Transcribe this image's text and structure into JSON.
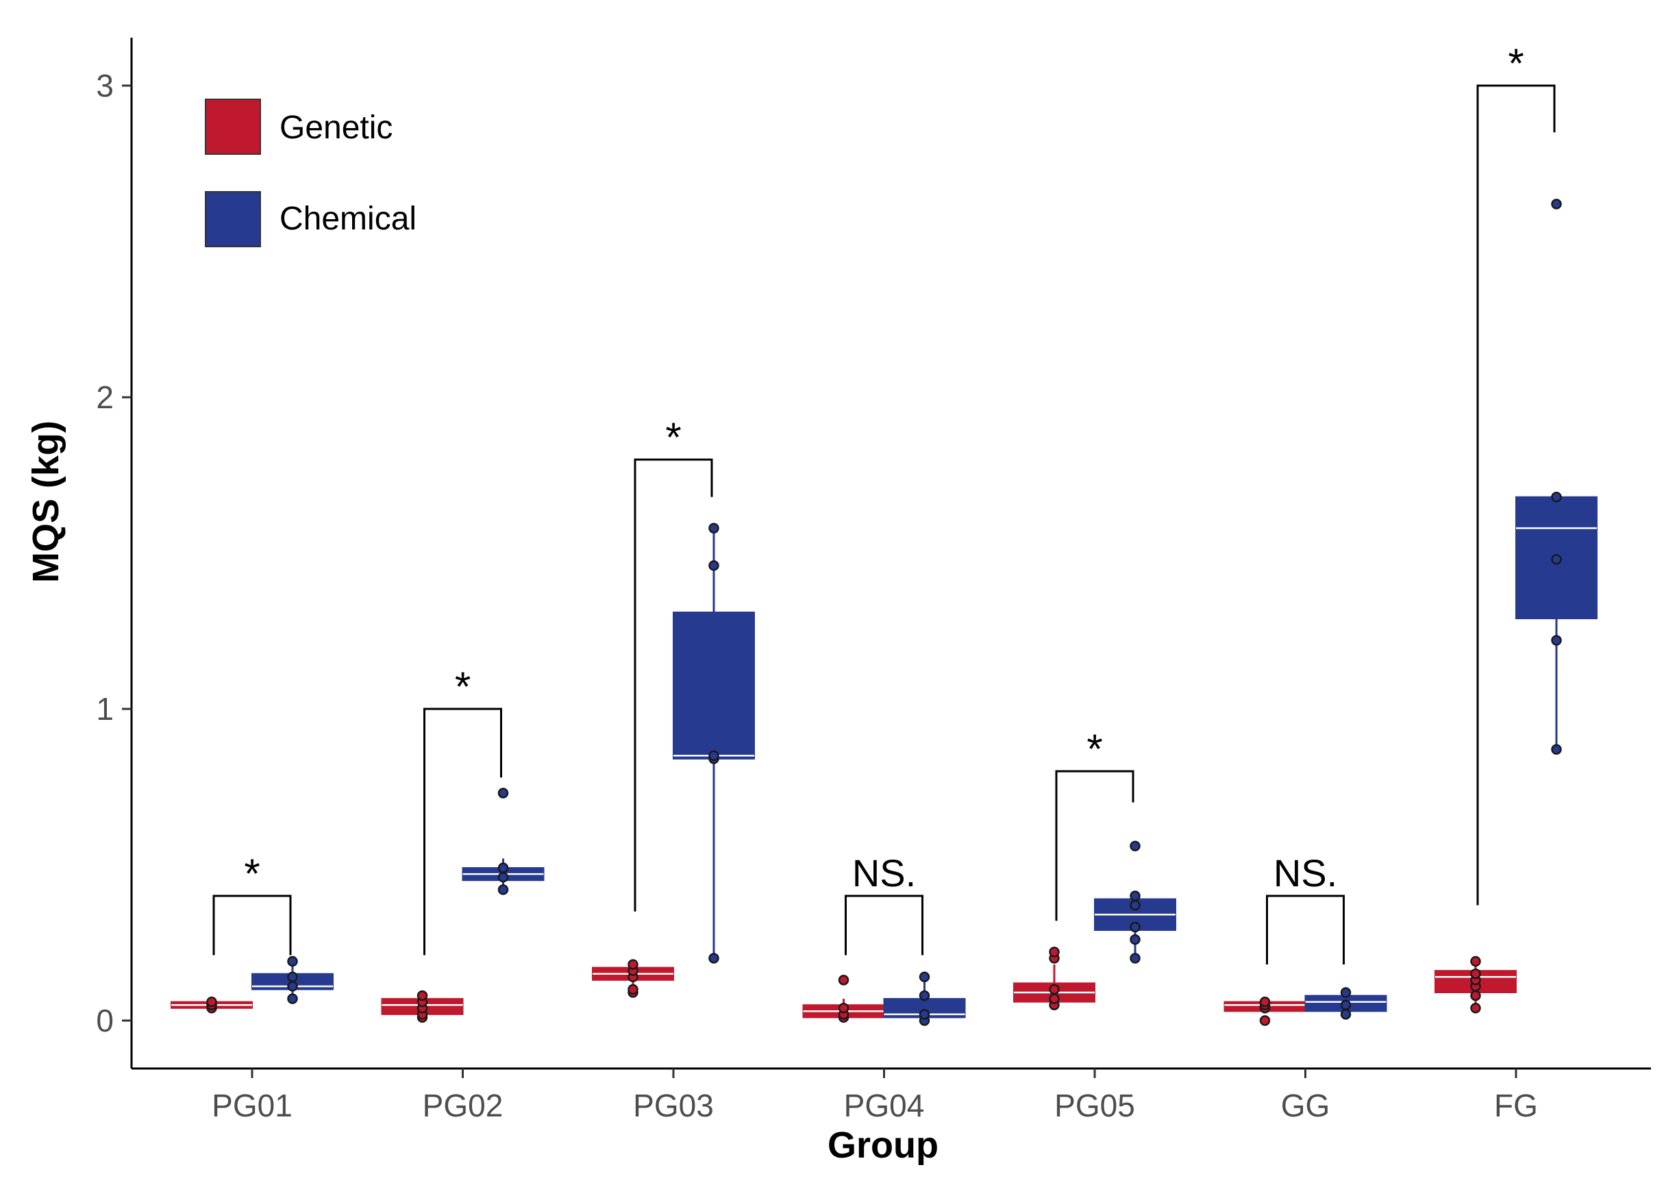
{
  "chart_data": {
    "type": "box",
    "title": "",
    "xlabel": "Group",
    "ylabel": "MQS (kg)",
    "ylim": [
      -0.15,
      3.15
    ],
    "yticks": [
      0,
      1,
      2,
      3
    ],
    "ytick_labels": [
      "0",
      "1",
      "2",
      "3"
    ],
    "categories": [
      "PG01",
      "PG02",
      "PG03",
      "PG04",
      "PG05",
      "GG",
      "FG"
    ],
    "legend": {
      "position": "top-left",
      "entries": [
        "Genetic",
        "Chemical"
      ]
    },
    "colors": {
      "Genetic": "#c0192e",
      "Chemical": "#263a8f"
    },
    "series": [
      {
        "name": "Genetic",
        "boxes": [
          {
            "min": 0.04,
            "q1": 0.04,
            "median": 0.05,
            "q3": 0.06,
            "max": 0.06,
            "points": [
              0.04,
              0.05,
              0.05,
              0.06
            ]
          },
          {
            "min": 0.0,
            "q1": 0.02,
            "median": 0.05,
            "q3": 0.07,
            "max": 0.08,
            "points": [
              0.01,
              0.02,
              0.04,
              0.06,
              0.08
            ]
          },
          {
            "min": 0.09,
            "q1": 0.13,
            "median": 0.15,
            "q3": 0.17,
            "max": 0.18,
            "points": [
              0.09,
              0.1,
              0.14,
              0.16,
              0.18
            ]
          },
          {
            "min": 0.0,
            "q1": 0.01,
            "median": 0.03,
            "q3": 0.05,
            "max": 0.07,
            "points": [
              0.01,
              0.02,
              0.04,
              0.13
            ]
          },
          {
            "min": 0.05,
            "q1": 0.06,
            "median": 0.09,
            "q3": 0.12,
            "max": 0.18,
            "points": [
              0.05,
              0.07,
              0.1,
              0.2,
              0.22
            ]
          },
          {
            "min": 0.03,
            "q1": 0.03,
            "median": 0.05,
            "q3": 0.06,
            "max": 0.06,
            "points": [
              0.0,
              0.04,
              0.05,
              0.06
            ]
          },
          {
            "min": 0.04,
            "q1": 0.09,
            "median": 0.14,
            "q3": 0.16,
            "max": 0.19,
            "points": [
              0.04,
              0.08,
              0.11,
              0.13,
              0.15,
              0.19
            ]
          }
        ]
      },
      {
        "name": "Chemical",
        "boxes": [
          {
            "min": 0.07,
            "q1": 0.1,
            "median": 0.11,
            "q3": 0.15,
            "max": 0.19,
            "points": [
              0.07,
              0.11,
              0.14,
              0.19
            ]
          },
          {
            "min": 0.42,
            "q1": 0.45,
            "median": 0.47,
            "q3": 0.49,
            "max": 0.52,
            "points": [
              0.42,
              0.46,
              0.49,
              0.73
            ]
          },
          {
            "min": 0.2,
            "q1": 0.84,
            "median": 0.85,
            "q3": 1.31,
            "max": 1.58,
            "points": [
              0.2,
              0.84,
              0.85,
              1.46,
              1.58
            ]
          },
          {
            "min": 0.0,
            "q1": 0.01,
            "median": 0.02,
            "q3": 0.07,
            "max": 0.14,
            "points": [
              0.0,
              0.02,
              0.08,
              0.14
            ]
          },
          {
            "min": 0.2,
            "q1": 0.29,
            "median": 0.34,
            "q3": 0.39,
            "max": 0.41,
            "points": [
              0.2,
              0.26,
              0.3,
              0.37,
              0.4,
              0.56
            ]
          },
          {
            "min": 0.02,
            "q1": 0.03,
            "median": 0.06,
            "q3": 0.08,
            "max": 0.09,
            "points": [
              0.02,
              0.05,
              0.09
            ]
          },
          {
            "min": 0.87,
            "q1": 1.29,
            "median": 1.58,
            "q3": 1.68,
            "max": 1.68,
            "points": [
              0.87,
              1.22,
              1.48,
              1.68,
              2.62
            ]
          }
        ]
      }
    ],
    "significance": [
      {
        "category": "PG01",
        "label": "*",
        "bar_y": 0.4,
        "left_y": 0.21,
        "right_y": 0.21
      },
      {
        "category": "PG02",
        "label": "*",
        "bar_y": 1.0,
        "left_y": 0.21,
        "right_y": 0.78
      },
      {
        "category": "PG03",
        "label": "*",
        "bar_y": 1.8,
        "left_y": 0.35,
        "right_y": 1.68
      },
      {
        "category": "PG04",
        "label": "NS.",
        "bar_y": 0.4,
        "left_y": 0.21,
        "right_y": 0.21
      },
      {
        "category": "PG05",
        "label": "*",
        "bar_y": 0.8,
        "left_y": 0.32,
        "right_y": 0.7
      },
      {
        "category": "GG",
        "label": "NS.",
        "bar_y": 0.4,
        "left_y": 0.18,
        "right_y": 0.18
      },
      {
        "category": "FG",
        "label": "*",
        "bar_y": 3.0,
        "left_y": 0.37,
        "right_y": 2.85
      }
    ]
  }
}
